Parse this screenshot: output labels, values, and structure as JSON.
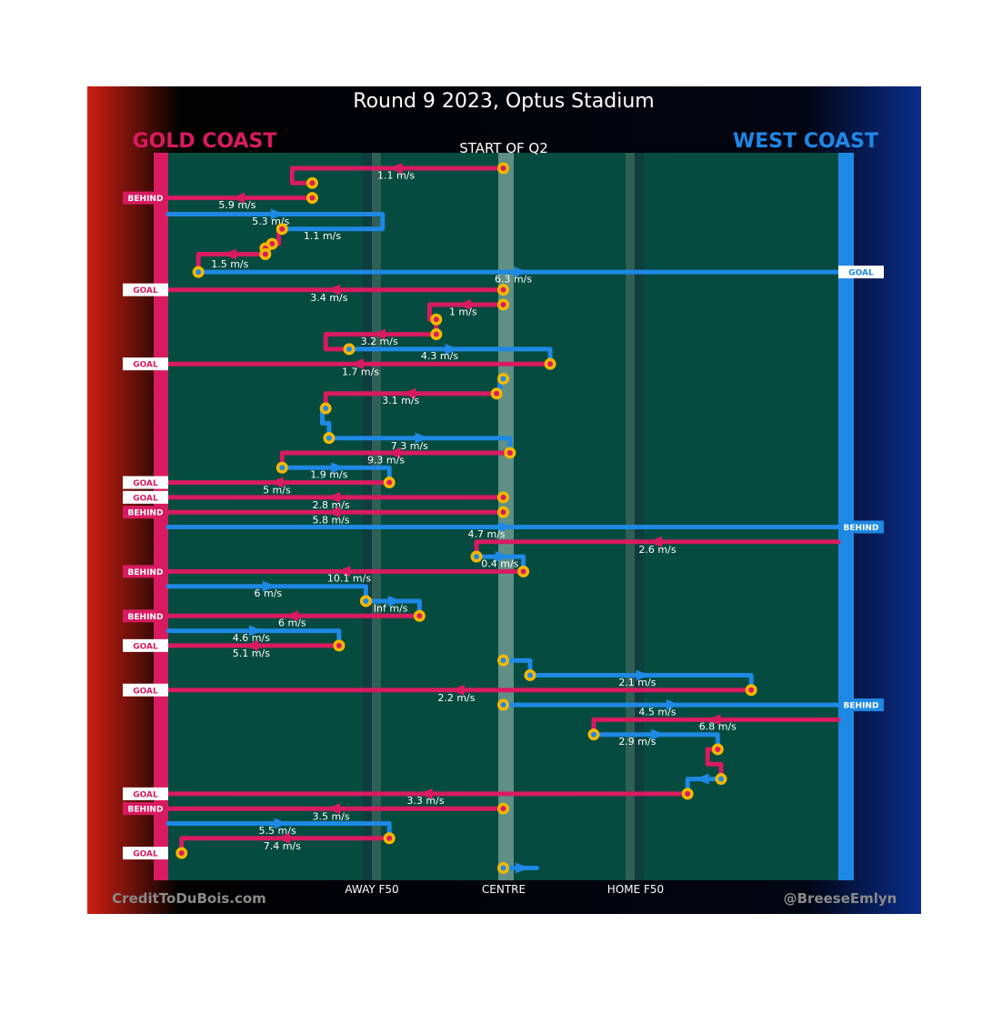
{
  "header": {
    "title": "Round 9 2023, Optus Stadium",
    "quarter_label": "START OF Q2",
    "team_left": "GOLD COAST",
    "team_right": "WEST COAST"
  },
  "footer": {
    "credit_left": "CreditToDuBois.com",
    "credit_right": "@BreeseEmlyn",
    "zone_away": "AWAY F50",
    "zone_centre": "CENTRE",
    "zone_home": "HOME F50"
  },
  "colors": {
    "gold_coast": "#d81b60",
    "west_coast": "#1e88e5",
    "field": "#054b3f",
    "marker": "#f5b800"
  },
  "chart_data": {
    "type": "line",
    "title": "Round 9 2023, Optus Stadium",
    "subtitle": "START OF Q2",
    "xlabel": "",
    "ylabel": "",
    "x_axis": {
      "description": "Ground position from Gold Coast goal (0) to West Coast goal (100)",
      "range": [
        0,
        100
      ],
      "ticks": [
        {
          "x": 30,
          "label": "AWAY F50"
        },
        {
          "x": 50,
          "label": "CENTRE"
        },
        {
          "x": 70,
          "label": "HOME F50"
        }
      ]
    },
    "y_axis": {
      "description": "Chain order, top to bottom",
      "range": [
        0,
        48
      ]
    },
    "teams": {
      "gc": "GOLD COAST",
      "wc": "WEST COAST"
    },
    "chains": [
      {
        "team": "gc",
        "pts": [
          [
            50,
            0
          ],
          [
            18.5,
            0
          ],
          [
            18.5,
            1
          ],
          [
            21.5,
            1
          ]
        ],
        "speed": "1.1 m/s",
        "sx": 34,
        "sy": 0.45,
        "start": [
          50,
          0
        ],
        "marker_end": [
          21.5,
          1
        ]
      },
      {
        "team": "gc",
        "pts": [
          [
            21.5,
            2
          ],
          [
            0,
            2
          ]
        ],
        "speed": "5.9 m/s",
        "sx": 10.3,
        "sy": 2.45,
        "start": [
          21.5,
          2
        ],
        "outcome": "BEHIND"
      },
      {
        "team": "wc",
        "pts": [
          [
            0,
            3.1
          ],
          [
            32,
            3.1
          ],
          [
            32,
            4.1
          ],
          [
            17,
            4.1
          ]
        ],
        "speed": "5.3 m/s",
        "sx": 15.3,
        "sy": 3.55,
        "start": [
          0,
          3.1
        ]
      },
      {
        "team": "gc",
        "pts": [
          [
            17,
            4.1
          ],
          [
            16.5,
            4.1
          ],
          [
            16.5,
            5.1
          ],
          [
            15.5,
            5.1
          ]
        ],
        "speed": "1.1 m/s",
        "sx": 23,
        "sy": 4.55,
        "start": [
          17,
          4.1
        ],
        "marker_end": [
          15.5,
          5.1
        ]
      },
      {
        "team": "gc",
        "pts": [
          [
            14.5,
            5.4
          ],
          [
            14.5,
            5.8
          ],
          [
            4.5,
            5.8
          ],
          [
            4.5,
            7
          ]
        ],
        "speed": "1.5 m/s",
        "sx": 9.2,
        "sy": 6.45,
        "start": [
          14.5,
          5.4
        ],
        "marker_end": [
          14.5,
          5.8
        ]
      },
      {
        "team": "wc",
        "pts": [
          [
            4.5,
            7
          ],
          [
            100,
            7
          ]
        ],
        "speed": "6.3 m/s",
        "sx": 51.5,
        "sy": 7.45,
        "start": [
          4.5,
          7
        ],
        "outcome": "GOAL"
      },
      {
        "team": "gc",
        "pts": [
          [
            50,
            8.2
          ],
          [
            0,
            8.2
          ]
        ],
        "speed": "3.4 m/s",
        "sx": 24,
        "sy": 8.7,
        "start": [
          50,
          8.2
        ],
        "outcome": "GOAL"
      },
      {
        "team": "gc",
        "pts": [
          [
            50,
            9.2
          ],
          [
            39,
            9.2
          ],
          [
            39,
            10.2
          ],
          [
            40,
            10.2
          ],
          [
            40,
            11.2
          ]
        ],
        "speed": "1 m/s",
        "sx": 44,
        "sy": 9.65,
        "start": [
          50,
          9.2
        ],
        "marker_end": [
          40,
          10.2
        ]
      },
      {
        "team": "gc",
        "pts": [
          [
            40,
            11.2
          ],
          [
            23.5,
            11.2
          ],
          [
            23.5,
            12.2
          ],
          [
            27,
            12.2
          ]
        ],
        "speed": "3.2 m/s",
        "sx": 31.5,
        "sy": 11.65,
        "start": [
          40,
          11.2
        ]
      },
      {
        "team": "wc",
        "pts": [
          [
            27,
            12.2
          ],
          [
            57,
            12.2
          ],
          [
            57,
            13.2
          ]
        ],
        "speed": "4.3 m/s",
        "sx": 40.5,
        "sy": 12.65,
        "start": [
          27,
          12.2
        ]
      },
      {
        "team": "gc",
        "pts": [
          [
            57,
            13.2
          ],
          [
            0,
            13.2
          ]
        ],
        "speed": "1.7 m/s",
        "sx": 28.7,
        "sy": 13.7,
        "start": [
          57,
          13.2
        ],
        "outcome": "GOAL"
      },
      {
        "team": "wc",
        "pts": [
          [
            50,
            14.2
          ],
          [
            49.5,
            14.2
          ],
          [
            49.5,
            15.2
          ]
        ],
        "speed": "",
        "sx": 0,
        "sy": 0,
        "start": [
          50,
          14.2
        ]
      },
      {
        "team": "gc",
        "pts": [
          [
            49,
            15.2
          ],
          [
            23.5,
            15.2
          ],
          [
            23.5,
            16.2
          ]
        ],
        "speed": "3.1 m/s",
        "sx": 34.7,
        "sy": 15.65,
        "start": [
          49,
          15.2
        ]
      },
      {
        "team": "wc",
        "pts": [
          [
            23.5,
            16.2
          ],
          [
            23,
            16.2
          ],
          [
            23,
            17.2
          ],
          [
            24,
            17.2
          ],
          [
            24,
            18.2
          ]
        ],
        "speed": "",
        "sx": 0,
        "sy": 0,
        "start": [
          23.5,
          16.2
        ]
      },
      {
        "team": "wc",
        "pts": [
          [
            24,
            18.2
          ],
          [
            51,
            18.2
          ],
          [
            51,
            19.2
          ]
        ],
        "speed": "7.3 m/s",
        "sx": 36,
        "sy": 18.7,
        "start": [
          24,
          18.2
        ]
      },
      {
        "team": "gc",
        "pts": [
          [
            51,
            19.2
          ],
          [
            17,
            19.2
          ],
          [
            17,
            20.2
          ]
        ],
        "speed": "9.3 m/s",
        "sx": 32.5,
        "sy": 19.65,
        "start": [
          51,
          19.2
        ]
      },
      {
        "team": "wc",
        "pts": [
          [
            17,
            20.2
          ],
          [
            33,
            20.2
          ],
          [
            33,
            21.2
          ]
        ],
        "speed": "1.9 m/s",
        "sx": 24,
        "sy": 20.65,
        "start": [
          17,
          20.2
        ]
      },
      {
        "team": "gc",
        "pts": [
          [
            33,
            21.2
          ],
          [
            0,
            21.2
          ]
        ],
        "speed": "5 m/s",
        "sx": 16.2,
        "sy": 21.7,
        "start": [
          33,
          21.2
        ],
        "outcome": "GOAL"
      },
      {
        "team": "gc",
        "pts": [
          [
            50,
            22.2
          ],
          [
            0,
            22.2
          ]
        ],
        "speed": "2.8 m/s",
        "sx": 24.3,
        "sy": 22.7,
        "start": [
          50,
          22.2
        ],
        "outcome": "GOAL"
      },
      {
        "team": "gc",
        "pts": [
          [
            50,
            23.2
          ],
          [
            0,
            23.2
          ]
        ],
        "speed": "5.8 m/s",
        "sx": 24.3,
        "sy": 23.7,
        "start": [
          50,
          23.2
        ],
        "outcome": "BEHIND"
      },
      {
        "team": "wc",
        "pts": [
          [
            0,
            24.2
          ],
          [
            100,
            24.2
          ]
        ],
        "speed": "4.7 m/s",
        "sx": 47.5,
        "sy": 24.65,
        "start": [
          0,
          24.2
        ],
        "outcome": "BEHIND"
      },
      {
        "team": "gc",
        "pts": [
          [
            100,
            25.2
          ],
          [
            46,
            25.2
          ],
          [
            46,
            26.2
          ]
        ],
        "speed": "2.6 m/s",
        "sx": 73,
        "sy": 25.7,
        "start": [
          100,
          25.2
        ]
      },
      {
        "team": "wc",
        "pts": [
          [
            46,
            26.2
          ],
          [
            53,
            26.2
          ],
          [
            53,
            27.2
          ]
        ],
        "speed": "0.4 m/s",
        "sx": 49.5,
        "sy": 26.65,
        "start": [
          46,
          26.2
        ]
      },
      {
        "team": "gc",
        "pts": [
          [
            53,
            27.2
          ],
          [
            0,
            27.2
          ]
        ],
        "speed": "10.1 m/s",
        "sx": 27,
        "sy": 27.65,
        "start": [
          53,
          27.2
        ],
        "outcome": "BEHIND"
      },
      {
        "team": "wc",
        "pts": [
          [
            0,
            28.2
          ],
          [
            29.5,
            28.2
          ],
          [
            29.5,
            29.2
          ]
        ],
        "speed": "6 m/s",
        "sx": 14.9,
        "sy": 28.65,
        "start": [
          0,
          28.2
        ],
        "marker_end": [
          29.5,
          29.2
        ]
      },
      {
        "team": "wc",
        "pts": [
          [
            29.5,
            29.2
          ],
          [
            37.5,
            29.2
          ],
          [
            37.5,
            30.2
          ]
        ],
        "speed": "Inf m/s",
        "sx": 33.2,
        "sy": 29.65,
        "start": [
          29.5,
          29.2
        ]
      },
      {
        "team": "gc",
        "pts": [
          [
            37.5,
            30.2
          ],
          [
            0,
            30.2
          ]
        ],
        "speed": "6 m/s",
        "sx": 18.5,
        "sy": 30.65,
        "start": [
          37.5,
          30.2
        ],
        "outcome": "BEHIND"
      },
      {
        "team": "wc",
        "pts": [
          [
            0,
            31.2
          ],
          [
            25.5,
            31.2
          ],
          [
            25.5,
            32.2
          ]
        ],
        "speed": "4.6 m/s",
        "sx": 12.4,
        "sy": 31.65,
        "start": [
          0,
          31.2
        ]
      },
      {
        "team": "gc",
        "pts": [
          [
            25.5,
            32.2
          ],
          [
            0,
            32.2
          ]
        ],
        "speed": "5.1 m/s",
        "sx": 12.4,
        "sy": 32.7,
        "start": [
          25.5,
          32.2
        ],
        "outcome": "GOAL"
      },
      {
        "team": "wc",
        "pts": [
          [
            50,
            33.2
          ],
          [
            54,
            33.2
          ],
          [
            54,
            34.2
          ]
        ],
        "speed": "",
        "sx": 0,
        "sy": 0,
        "start": [
          50,
          33.2
        ]
      },
      {
        "team": "wc",
        "pts": [
          [
            54,
            34.2
          ],
          [
            87,
            34.2
          ],
          [
            87,
            35.2
          ]
        ],
        "speed": "2.1 m/s",
        "sx": 70,
        "sy": 34.65,
        "start": [
          54,
          34.2
        ]
      },
      {
        "team": "gc",
        "pts": [
          [
            87,
            35.2
          ],
          [
            0,
            35.2
          ]
        ],
        "speed": "2.2 m/s",
        "sx": 43,
        "sy": 35.7,
        "start": [
          87,
          35.2
        ],
        "outcome": "GOAL"
      },
      {
        "team": "wc",
        "pts": [
          [
            50,
            36.2
          ],
          [
            100,
            36.2
          ]
        ],
        "speed": "4.5 m/s",
        "sx": 73,
        "sy": 36.65,
        "start": [
          50,
          36.2
        ],
        "outcome": "BEHIND"
      },
      {
        "team": "gc",
        "pts": [
          [
            100,
            37.2
          ],
          [
            63.5,
            37.2
          ],
          [
            63.5,
            38.2
          ]
        ],
        "speed": "6.8 m/s",
        "sx": 82,
        "sy": 37.65,
        "start": [
          100,
          37.2
        ]
      },
      {
        "team": "wc",
        "pts": [
          [
            63.5,
            38.2
          ],
          [
            82,
            38.2
          ],
          [
            82,
            39.2
          ]
        ],
        "speed": "2.9 m/s",
        "sx": 70,
        "sy": 38.65,
        "start": [
          63.5,
          38.2
        ]
      },
      {
        "team": "gc",
        "pts": [
          [
            82,
            39.2
          ],
          [
            80.5,
            39.2
          ],
          [
            80.5,
            40.2
          ],
          [
            82.5,
            40.2
          ],
          [
            82.5,
            41.2
          ]
        ],
        "speed": "",
        "sx": 0,
        "sy": 0,
        "start": [
          82,
          39.2
        ]
      },
      {
        "team": "wc",
        "pts": [
          [
            82.5,
            41.2
          ],
          [
            77.5,
            41.2
          ],
          [
            77.5,
            42.2
          ]
        ],
        "speed": "",
        "sx": 0,
        "sy": 0,
        "start": [
          82.5,
          41.2
        ]
      },
      {
        "team": "gc",
        "pts": [
          [
            77.5,
            42.2
          ],
          [
            0,
            42.2
          ]
        ],
        "speed": "3.3 m/s",
        "sx": 38.4,
        "sy": 42.65,
        "start": [
          77.5,
          42.2
        ],
        "outcome": "GOAL"
      },
      {
        "team": "gc",
        "pts": [
          [
            50,
            43.2
          ],
          [
            0,
            43.2
          ]
        ],
        "speed": "3.5 m/s",
        "sx": 24.3,
        "sy": 43.7,
        "start": [
          50,
          43.2
        ],
        "outcome": "BEHIND"
      },
      {
        "team": "wc",
        "pts": [
          [
            0,
            44.2
          ],
          [
            33,
            44.2
          ],
          [
            33,
            45.2
          ]
        ],
        "speed": "5.5 m/s",
        "sx": 16.3,
        "sy": 44.65,
        "start": [
          0,
          44.2
        ]
      },
      {
        "team": "gc",
        "pts": [
          [
            33,
            45.2
          ],
          [
            2,
            45.2
          ],
          [
            2,
            46.2
          ]
        ],
        "speed": "7.4 m/s",
        "sx": 17,
        "sy": 45.7,
        "start": [
          33,
          45.2
        ],
        "marker_end": [
          2,
          46.2
        ]
      },
      {
        "team": "wc",
        "pts": [
          [
            50,
            47.2
          ],
          [
            55,
            47.2
          ]
        ],
        "speed": "",
        "sx": 0,
        "sy": 0,
        "start": [
          50,
          47.2
        ]
      }
    ],
    "outcomes": [
      {
        "team": "gc",
        "label": "BEHIND",
        "y": 2
      },
      {
        "team": "wc",
        "label": "GOAL",
        "y": 7
      },
      {
        "team": "gc",
        "label": "GOAL",
        "y": 8.2
      },
      {
        "team": "gc",
        "label": "GOAL",
        "y": 13.2
      },
      {
        "team": "gc",
        "label": "GOAL",
        "y": 21.2
      },
      {
        "team": "gc",
        "label": "GOAL",
        "y": 22.2
      },
      {
        "team": "gc",
        "label": "BEHIND",
        "y": 23.2
      },
      {
        "team": "wc",
        "label": "BEHIND",
        "y": 24.2
      },
      {
        "team": "gc",
        "label": "BEHIND",
        "y": 27.2
      },
      {
        "team": "gc",
        "label": "BEHIND",
        "y": 30.2
      },
      {
        "team": "gc",
        "label": "GOAL",
        "y": 32.2
      },
      {
        "team": "gc",
        "label": "GOAL",
        "y": 35.2
      },
      {
        "team": "wc",
        "label": "BEHIND",
        "y": 36.2
      },
      {
        "team": "gc",
        "label": "GOAL",
        "y": 42.2
      },
      {
        "team": "gc",
        "label": "BEHIND",
        "y": 43.2
      },
      {
        "team": "gc",
        "label": "GOAL",
        "y": 46.2
      }
    ]
  }
}
